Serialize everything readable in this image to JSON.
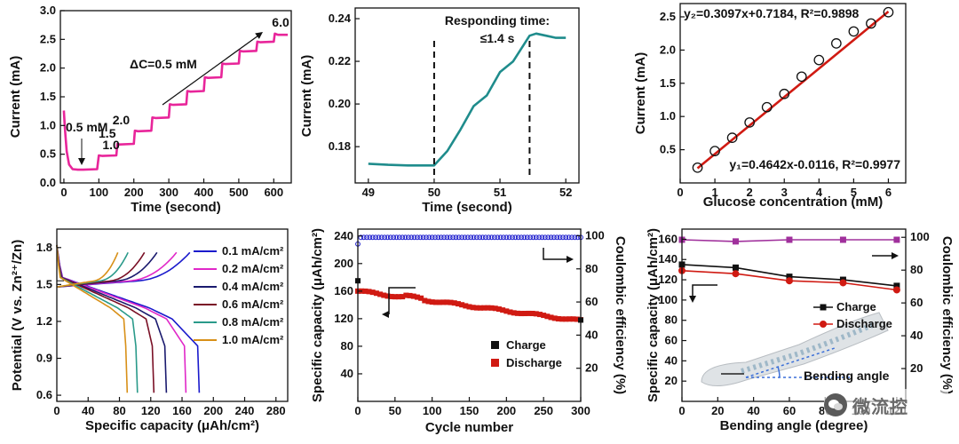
{
  "colors": {
    "magenta": "#e8259a",
    "teal": "#1f8c8c",
    "red": "#d01a12",
    "blue": "#1a1acc",
    "purple": "#a0309c",
    "black": "#111111",
    "navy": "#1b1f8a"
  },
  "chart_data": [
    {
      "id": "a",
      "type": "line",
      "xlabel": "Time (second)",
      "ylabel": "Current (mA)",
      "xlim": [
        -10,
        650
      ],
      "ylim": [
        0,
        3.0
      ],
      "xticks": [
        "0",
        "100",
        "200",
        "300",
        "400",
        "500",
        "600"
      ],
      "yticks": [
        "0.0",
        "0.5",
        "1.0",
        "1.5",
        "2.0",
        "2.5",
        "3.0"
      ],
      "annotations": {
        "delta": "ΔC=0.5 mM",
        "first": "0.5 mM",
        "last": "6.0",
        "steps": [
          "1.0",
          "1.5",
          "2.0"
        ]
      },
      "series": [
        {
          "name": "Current",
          "x": [
            0,
            3,
            8,
            15,
            25,
            40,
            55,
            95,
            100,
            110,
            150,
            153,
            160,
            200,
            203,
            212,
            250,
            253,
            262,
            300,
            303,
            312,
            350,
            353,
            362,
            400,
            403,
            412,
            450,
            453,
            462,
            500,
            503,
            512,
            550,
            553,
            562,
            600,
            603,
            612,
            640
          ],
          "y": [
            1.26,
            0.95,
            0.55,
            0.32,
            0.24,
            0.23,
            0.23,
            0.24,
            0.48,
            0.47,
            0.48,
            0.68,
            0.67,
            0.68,
            0.91,
            0.9,
            0.91,
            1.14,
            1.13,
            1.14,
            1.37,
            1.36,
            1.37,
            1.6,
            1.59,
            1.6,
            1.84,
            1.83,
            1.84,
            2.08,
            2.07,
            2.08,
            2.3,
            2.29,
            2.3,
            2.46,
            2.45,
            2.46,
            2.6,
            2.58,
            2.58
          ]
        }
      ]
    },
    {
      "id": "b",
      "type": "line",
      "xlabel": "Time (second)",
      "ylabel": "Current (mA)",
      "xlim": [
        48.8,
        52.2
      ],
      "ylim": [
        0.163,
        0.245
      ],
      "xticks": [
        "49",
        "50",
        "51",
        "52"
      ],
      "yticks": [
        "0.18",
        "0.20",
        "0.22",
        "0.24"
      ],
      "annotations": {
        "title_line1": "Responding time:",
        "title_line2": "≤1.4 s",
        "dashed_x": [
          50,
          51.45
        ]
      },
      "series": [
        {
          "name": "Current",
          "x": [
            49.0,
            49.3,
            49.6,
            50.0,
            50.2,
            50.4,
            50.6,
            50.8,
            51.0,
            51.2,
            51.45,
            51.55,
            51.7,
            51.85,
            52.0
          ],
          "y": [
            0.172,
            0.1715,
            0.1712,
            0.1712,
            0.178,
            0.188,
            0.199,
            0.204,
            0.215,
            0.22,
            0.232,
            0.233,
            0.232,
            0.231,
            0.231
          ]
        }
      ]
    },
    {
      "id": "c",
      "type": "scatter",
      "xlabel": "Glucose concentration (mM)",
      "ylabel": "Current (mA)",
      "xlim": [
        0,
        6.5
      ],
      "ylim": [
        0,
        2.7
      ],
      "xticks": [
        "0",
        "1",
        "2",
        "3",
        "4",
        "5",
        "6"
      ],
      "yticks": [
        "0.5",
        "1.0",
        "1.5",
        "2.0",
        "2.5"
      ],
      "annotations": {
        "fit2": "y₂=0.3097x+0.7184, R²=0.9898",
        "fit1": "y₁=0.4642x-0.0116, R²=0.9977"
      },
      "series": [
        {
          "name": "Measured",
          "x": [
            0.5,
            1.0,
            1.5,
            2.0,
            2.5,
            3.0,
            3.5,
            4.0,
            4.5,
            5.0,
            5.5,
            6.0
          ],
          "y": [
            0.23,
            0.48,
            0.68,
            0.91,
            1.14,
            1.34,
            1.6,
            1.85,
            2.1,
            2.28,
            2.4,
            2.57
          ]
        }
      ]
    },
    {
      "id": "d",
      "type": "line",
      "xlabel": "Specific capacity (μAh/cm²)",
      "ylabel": "Potential (V vs. Zn²⁺/Zn)",
      "xlim": [
        0,
        295
      ],
      "ylim": [
        0.55,
        1.95
      ],
      "xticks": [
        "0",
        "40",
        "80",
        "120",
        "160",
        "200",
        "240",
        "280"
      ],
      "yticks": [
        "0.6",
        "0.9",
        "1.2",
        "1.5",
        "1.8"
      ],
      "series": [
        {
          "name": "0.1 mA/cm²",
          "color": "#1a1acc",
          "cap": 182,
          "tail": 0.19
        },
        {
          "name": "0.2 mA/cm²",
          "color": "#e028c8",
          "cap": 165,
          "tail": 0.15
        },
        {
          "name": "0.4 mA/cm²",
          "color": "#1a1a6e",
          "cap": 140,
          "tail": 0.1
        },
        {
          "name": "0.6 mA/cm²",
          "color": "#7a1026",
          "cap": 124,
          "tail": 0.08
        },
        {
          "name": "0.8 mA/cm²",
          "color": "#2a9a8a",
          "cap": 103,
          "tail": 0.06
        },
        {
          "name": "1.0 mA/cm²",
          "color": "#d89018",
          "cap": 90,
          "tail": 0.05
        }
      ]
    },
    {
      "id": "e",
      "type": "scatter",
      "xlabel": "Cycle number",
      "ylabel": "Specific capacity (μAh/cm²)",
      "y2label": "Coulombic efficiency (%)",
      "xlim": [
        0,
        300
      ],
      "ylim": [
        0,
        250
      ],
      "y2lim": [
        0,
        104
      ],
      "xticks": [
        "0",
        "50",
        "100",
        "150",
        "200",
        "250",
        "300"
      ],
      "yticks": [
        "40",
        "80",
        "120",
        "160",
        "200",
        "240"
      ],
      "y2ticks": [
        "20",
        "40",
        "60",
        "80",
        "100"
      ],
      "legend": [
        "Charge",
        "Discharge"
      ],
      "series": [
        {
          "name": "Charge",
          "start": 175,
          "end": 118
        },
        {
          "name": "Discharge",
          "start": 160,
          "end": 117
        },
        {
          "name": "Coulombic efficiency",
          "value": 99
        }
      ]
    },
    {
      "id": "f",
      "type": "line",
      "xlabel": "Bending angle (degree)",
      "ylabel": "Specific capacity (μAh/cm²)",
      "y2label": "Coulombic efficiency (%)",
      "xlim": [
        0,
        125
      ],
      "ylim": [
        0,
        170
      ],
      "y2lim": [
        0,
        105
      ],
      "xticks": [
        "0",
        "20",
        "40",
        "60",
        "80",
        "100",
        "120"
      ],
      "yticks": [
        "20",
        "40",
        "60",
        "80",
        "100",
        "120",
        "140",
        "160"
      ],
      "y2ticks": [
        "20",
        "40",
        "60",
        "80",
        "100"
      ],
      "legend": [
        "Charge",
        "Discharge"
      ],
      "inset_label": "Bending angle",
      "series": [
        {
          "name": "Charge",
          "x": [
            0,
            30,
            60,
            90,
            120
          ],
          "y": [
            135,
            132,
            123,
            120,
            114
          ]
        },
        {
          "name": "Discharge",
          "x": [
            0,
            30,
            60,
            90,
            120
          ],
          "y": [
            129,
            126,
            119,
            117,
            110
          ]
        },
        {
          "name": "Coulombic efficiency",
          "x": [
            0,
            30,
            60,
            90,
            120
          ],
          "y": [
            98.5,
            97.5,
            98.5,
            98.5,
            98.5
          ]
        }
      ]
    }
  ],
  "watermark": {
    "text": "微流控",
    "logo": "wechat-logo"
  }
}
